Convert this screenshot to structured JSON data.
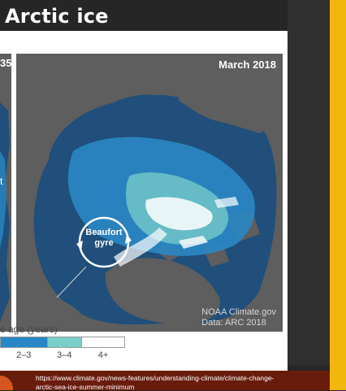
{
  "slide": {
    "title": "Arctic ice"
  },
  "figure": {
    "left_panel_label_partial": "35",
    "left_panel_letter": "t",
    "main_panel_label": "March 2018",
    "gyre_label_line1": "Beaufort",
    "gyre_label_line2": "gyre",
    "credit_line1": "NOAA Climate.gov",
    "credit_line2": "Data: ARC 2018"
  },
  "legend": {
    "title": "e age (years)",
    "segments": [
      {
        "label": "2–3",
        "color": "#2a87c5",
        "fraction": 0.38
      },
      {
        "label": "3–4",
        "color": "#79cec8",
        "fraction": 0.27
      },
      {
        "label": "4+",
        "color": "#ffffff",
        "fraction": 0.35
      }
    ]
  },
  "colors": {
    "background": "#262626",
    "ocean": "#1f4f7a",
    "land": "#5e5e5e",
    "accent_yellow": "#f2b70d",
    "source_band": "#6a1c0c"
  },
  "source": {
    "url_line1": "https://www.climate.gov/news-features/understanding-climate/climate-change-",
    "url_line2": "arctic-sea-ice-summer-minimum"
  }
}
